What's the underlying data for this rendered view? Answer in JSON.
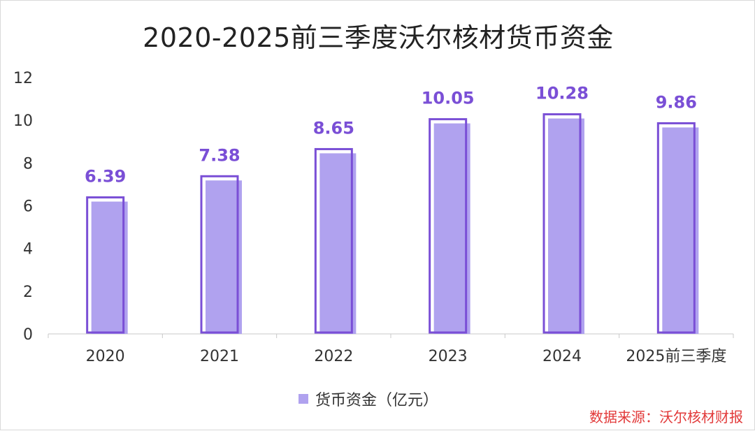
{
  "chart_data": {
    "type": "bar",
    "title": "2020-2025前三季度沃尔核材货币资金",
    "categories": [
      "2020",
      "2021",
      "2022",
      "2023",
      "2024",
      "2025前三季度"
    ],
    "series": [
      {
        "name": "货币资金（亿元）",
        "values": [
          6.39,
          7.38,
          8.65,
          10.05,
          10.28,
          9.86
        ],
        "labels": [
          "6.39",
          "7.38",
          "8.65",
          "10.05",
          "10.28",
          "9.86"
        ]
      }
    ],
    "ylim": [
      0,
      12
    ],
    "yticks": [
      "0",
      "2",
      "4",
      "6",
      "8",
      "10",
      "12"
    ],
    "ytick_values": [
      0,
      2,
      4,
      6,
      8,
      10,
      12
    ],
    "legend_position": "bottom",
    "grid": false,
    "colors": {
      "bar_fill": "#b0a2ef",
      "bar_outline": "#7a4fd6",
      "data_label": "#7a4fd6"
    }
  },
  "source_note": "数据来源：沃尔核材财报"
}
